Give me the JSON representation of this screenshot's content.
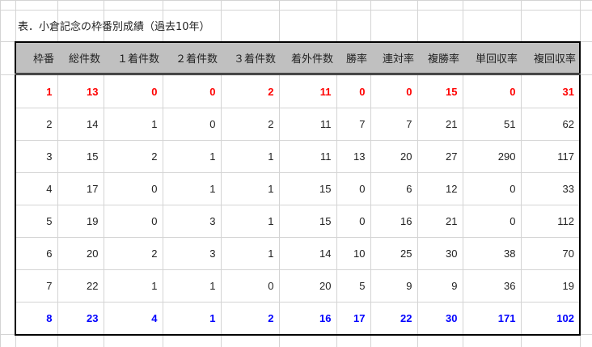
{
  "title": "表．小倉記念の枠番別成績（過去10年）",
  "columns": [
    "枠番",
    "総件数",
    "１着件数",
    "２着件数",
    "３着件数",
    "着外件数",
    "勝率",
    "連対率",
    "複勝率",
    "単回収率",
    "複回収率"
  ],
  "rows": [
    {
      "style": "red",
      "cells": [
        "1",
        "13",
        "0",
        "0",
        "2",
        "11",
        "0",
        "0",
        "15",
        "0",
        "31"
      ]
    },
    {
      "style": "normal",
      "cells": [
        "2",
        "14",
        "1",
        "0",
        "2",
        "11",
        "7",
        "7",
        "21",
        "51",
        "62"
      ]
    },
    {
      "style": "normal",
      "cells": [
        "3",
        "15",
        "2",
        "1",
        "1",
        "11",
        "13",
        "20",
        "27",
        "290",
        "117"
      ]
    },
    {
      "style": "normal",
      "cells": [
        "4",
        "17",
        "0",
        "1",
        "1",
        "15",
        "0",
        "6",
        "12",
        "0",
        "33"
      ]
    },
    {
      "style": "normal",
      "cells": [
        "5",
        "19",
        "0",
        "3",
        "1",
        "15",
        "0",
        "16",
        "21",
        "0",
        "112"
      ]
    },
    {
      "style": "normal",
      "cells": [
        "6",
        "20",
        "2",
        "3",
        "1",
        "14",
        "10",
        "25",
        "30",
        "38",
        "70"
      ]
    },
    {
      "style": "normal",
      "cells": [
        "7",
        "22",
        "1",
        "1",
        "0",
        "20",
        "5",
        "9",
        "9",
        "36",
        "19"
      ]
    },
    {
      "style": "blue",
      "cells": [
        "8",
        "23",
        "4",
        "1",
        "2",
        "16",
        "17",
        "22",
        "30",
        "171",
        "102"
      ]
    }
  ],
  "colors": {
    "header_bg": "#c0c0c0",
    "highlight_low": "#ff0000",
    "highlight_high": "#0000ff"
  }
}
